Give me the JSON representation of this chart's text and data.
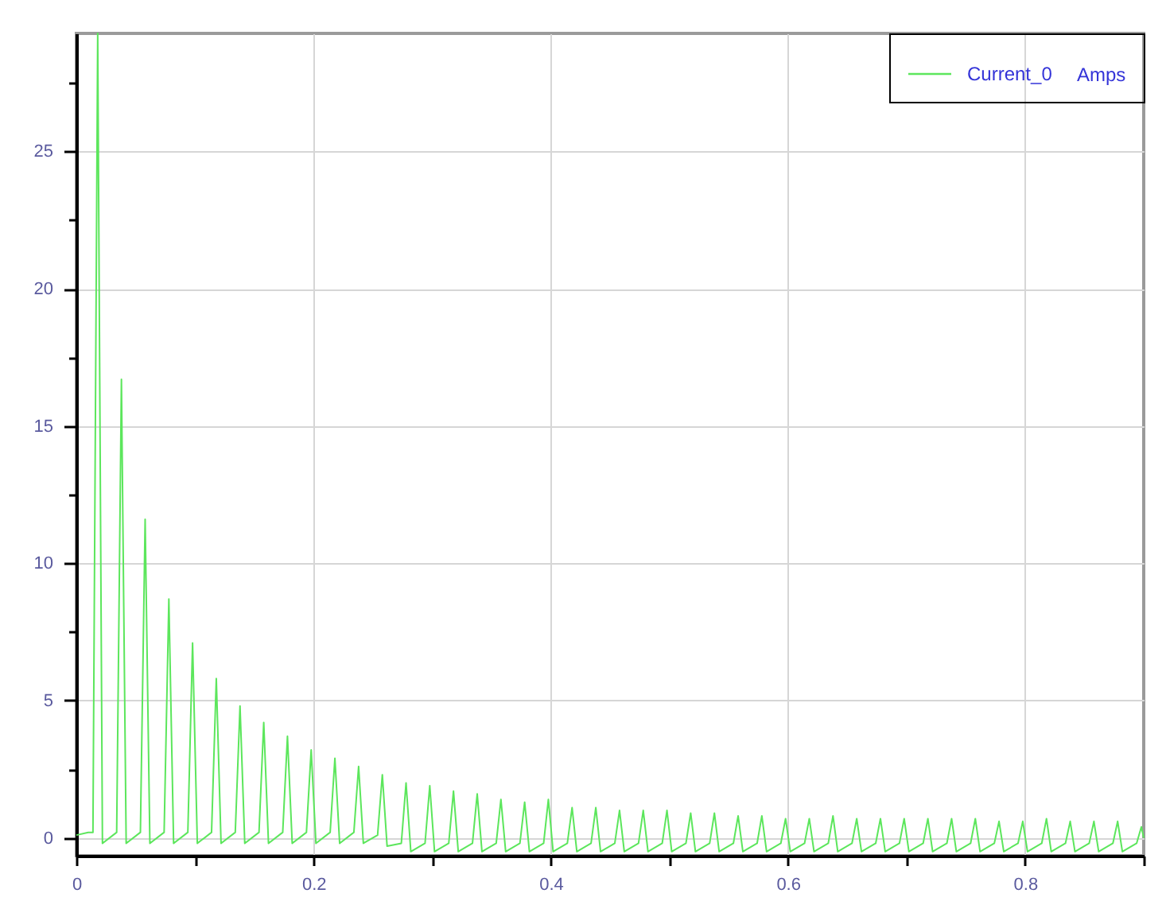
{
  "chart_data": {
    "type": "line",
    "xlim": [
      0,
      0.9
    ],
    "xticks": [
      0,
      {
        "value": 0.1,
        "label": null
      },
      0.2,
      {
        "value": 0.3,
        "label": null
      },
      0.4,
      {
        "value": 0.5,
        "label": null
      },
      0.6,
      {
        "value": 0.7,
        "label": null
      },
      0.8,
      {
        "value": 0.9,
        "label": null
      }
    ],
    "ylim": [
      -0.65,
      29.3
    ],
    "yticks": [
      0,
      {
        "value": 2.5,
        "label": null
      },
      5,
      {
        "value": 7.5,
        "label": null
      },
      10,
      {
        "value": 12.5,
        "label": null
      },
      15,
      {
        "value": 17.5,
        "label": null
      },
      20,
      {
        "value": 22.5,
        "label": null
      },
      25,
      {
        "value": 27.5,
        "label": null
      }
    ],
    "grid": true,
    "legend": "top right",
    "legend_title": "Amps",
    "x": [
      0,
      0.01,
      0.014,
      0.018,
      0.022,
      0.034,
      0.038,
      0.042,
      0.054,
      0.058,
      0.062,
      0.074,
      0.078,
      0.082,
      0.094,
      0.098,
      0.102,
      0.114,
      0.118,
      0.122,
      0.134,
      0.138,
      0.142,
      0.154,
      0.158,
      0.162,
      0.174,
      0.178,
      0.182,
      0.194,
      0.198,
      0.202,
      0.214,
      0.218,
      0.222,
      0.234,
      0.238,
      0.242,
      0.254,
      0.258,
      0.262,
      0.274,
      0.278,
      0.282,
      0.294,
      0.298,
      0.302,
      0.314,
      0.318,
      0.322,
      0.334,
      0.338,
      0.342,
      0.354,
      0.358,
      0.362,
      0.374,
      0.378,
      0.382,
      0.394,
      0.398,
      0.402,
      0.414,
      0.418,
      0.422,
      0.434,
      0.438,
      0.442,
      0.454,
      0.458,
      0.462,
      0.474,
      0.478,
      0.482,
      0.494,
      0.498,
      0.502,
      0.514,
      0.518,
      0.522,
      0.534,
      0.538,
      0.542,
      0.554,
      0.558,
      0.562,
      0.574,
      0.578,
      0.582,
      0.594,
      0.598,
      0.602,
      0.614,
      0.618,
      0.622,
      0.634,
      0.638,
      0.642,
      0.654,
      0.658,
      0.662,
      0.674,
      0.678,
      0.682,
      0.694,
      0.698,
      0.702,
      0.714,
      0.718,
      0.722,
      0.734,
      0.738,
      0.742,
      0.754,
      0.758,
      0.762,
      0.774,
      0.778,
      0.782,
      0.794,
      0.798,
      0.802,
      0.814,
      0.818,
      0.822,
      0.834,
      0.838,
      0.842,
      0.854,
      0.858,
      0.862,
      0.874,
      0.878,
      0.882,
      0.894,
      0.898,
      0.9
    ],
    "series": [
      {
        "name": "Current_0",
        "color": "#5ce65c",
        "values": [
          0.1,
          0.2,
          0.2,
          29.3,
          -0.2,
          0.2,
          16.7,
          -0.2,
          0.2,
          11.6,
          -0.2,
          0.2,
          8.7,
          -0.2,
          0.2,
          7.1,
          -0.2,
          0.2,
          5.8,
          -0.2,
          0.2,
          4.8,
          -0.2,
          0.2,
          4.2,
          -0.2,
          0.2,
          3.7,
          -0.2,
          0.2,
          3.2,
          -0.2,
          0.2,
          2.9,
          -0.2,
          0.2,
          2.6,
          -0.2,
          0.1,
          2.3,
          -0.3,
          -0.2,
          2.0,
          -0.5,
          -0.2,
          1.9,
          -0.5,
          -0.2,
          1.7,
          -0.5,
          -0.2,
          1.6,
          -0.5,
          -0.2,
          1.4,
          -0.5,
          -0.2,
          1.3,
          -0.5,
          -0.2,
          1.4,
          -0.5,
          -0.2,
          1.1,
          -0.5,
          -0.2,
          1.1,
          -0.5,
          -0.2,
          1.0,
          -0.5,
          -0.2,
          1.0,
          -0.5,
          -0.2,
          1.0,
          -0.5,
          -0.2,
          0.9,
          -0.5,
          -0.2,
          0.9,
          -0.5,
          -0.2,
          0.8,
          -0.5,
          -0.2,
          0.8,
          -0.5,
          -0.2,
          0.7,
          -0.5,
          -0.2,
          0.7,
          -0.5,
          -0.2,
          0.8,
          -0.5,
          -0.2,
          0.7,
          -0.5,
          -0.2,
          0.7,
          -0.5,
          -0.2,
          0.7,
          -0.5,
          -0.2,
          0.7,
          -0.5,
          -0.2,
          0.7,
          -0.5,
          -0.2,
          0.7,
          -0.5,
          -0.2,
          0.6,
          -0.5,
          -0.2,
          0.6,
          -0.5,
          -0.2,
          0.7,
          -0.5,
          -0.2,
          0.6,
          -0.5,
          -0.2,
          0.6,
          -0.5,
          -0.2,
          0.6,
          -0.5,
          -0.2,
          0.4,
          0.0
        ]
      }
    ]
  }
}
